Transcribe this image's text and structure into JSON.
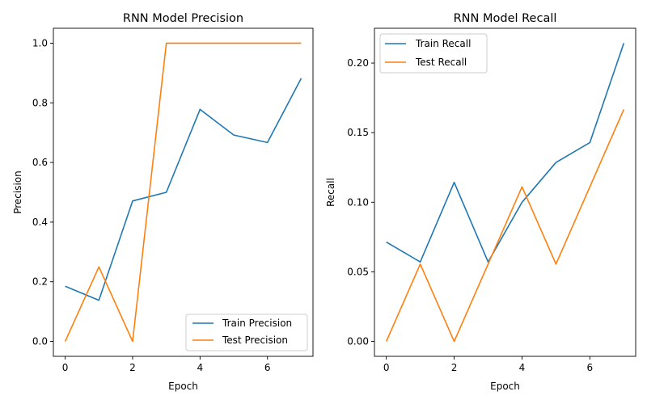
{
  "chart_data": [
    {
      "type": "line",
      "title": "RNN Model Precision",
      "xlabel": "Epoch",
      "ylabel": "Precision",
      "x": [
        0,
        1,
        2,
        3,
        4,
        5,
        6,
        7
      ],
      "xlim": [
        -0.35,
        7.35
      ],
      "ylim": [
        -0.05,
        1.05
      ],
      "xticks": [
        "0",
        "2",
        "4",
        "6"
      ],
      "yticks": [
        "0.0",
        "0.2",
        "0.4",
        "0.6",
        "0.8",
        "1.0"
      ],
      "grid": false,
      "legend_position": "lower-right",
      "series": [
        {
          "name": "Train Precision",
          "color": "#1f77b4",
          "values": [
            0.185,
            0.138,
            0.471,
            0.5,
            0.778,
            0.692,
            0.667,
            0.882
          ]
        },
        {
          "name": "Test Precision",
          "color": "#ff7f0e",
          "values": [
            0.0,
            0.25,
            0.0,
            1.0,
            1.0,
            1.0,
            1.0,
            1.0
          ]
        }
      ]
    },
    {
      "type": "line",
      "title": "RNN Model Recall",
      "xlabel": "Epoch",
      "ylabel": "Recall",
      "x": [
        0,
        1,
        2,
        3,
        4,
        5,
        6,
        7
      ],
      "xlim": [
        -0.35,
        7.35
      ],
      "ylim": [
        -0.0107,
        0.225
      ],
      "xticks": [
        "0",
        "2",
        "4",
        "6"
      ],
      "yticks": [
        "0.00",
        "0.05",
        "0.10",
        "0.15",
        "0.20"
      ],
      "grid": false,
      "legend_position": "upper-left",
      "series": [
        {
          "name": "Train Recall",
          "color": "#1f77b4",
          "values": [
            0.0714,
            0.0571,
            0.1143,
            0.0571,
            0.1,
            0.1286,
            0.1429,
            0.2143
          ]
        },
        {
          "name": "Test Recall",
          "color": "#ff7f0e",
          "values": [
            0.0,
            0.0556,
            0.0,
            0.0556,
            0.1111,
            0.0556,
            0.1111,
            0.1667
          ]
        }
      ]
    }
  ]
}
